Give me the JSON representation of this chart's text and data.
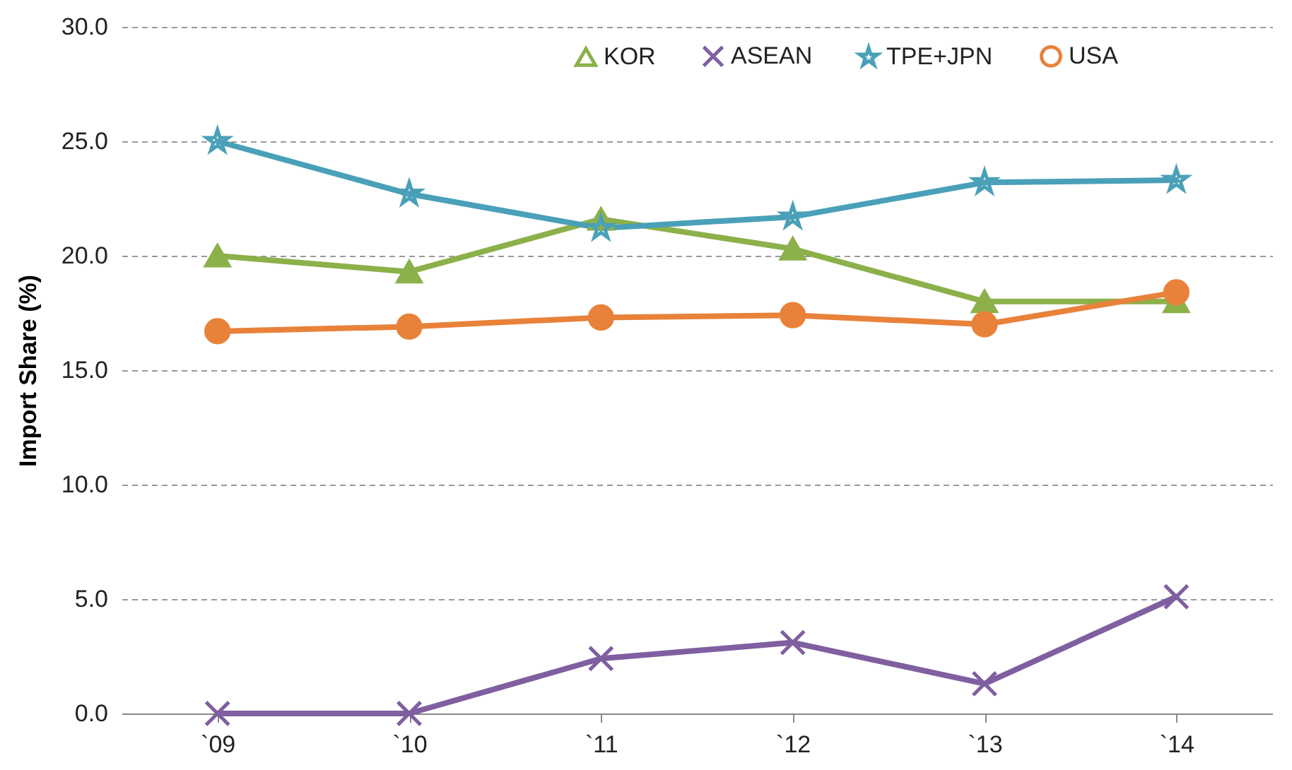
{
  "chart_data": {
    "type": "line",
    "ylabel": "Import Share (%)",
    "categories": [
      "`09",
      "`10",
      "`11",
      "`12",
      "`13",
      "`14"
    ],
    "series": [
      {
        "name": "KOR",
        "color": "#8cb04a",
        "marker": "triangle",
        "values": [
          20.0,
          19.3,
          21.6,
          20.3,
          18.0,
          18.0
        ]
      },
      {
        "name": "ASEAN",
        "color": "#7f5fa0",
        "marker": "cross",
        "values": [
          0.0,
          0.0,
          2.4,
          3.1,
          1.3,
          5.1
        ]
      },
      {
        "name": "TPE+JPN",
        "color": "#4aa0b8",
        "marker": "star",
        "values": [
          25.0,
          22.7,
          21.2,
          21.7,
          23.2,
          23.3
        ]
      },
      {
        "name": "USA",
        "color": "#e8823a",
        "marker": "circle",
        "values": [
          16.7,
          16.9,
          17.3,
          17.4,
          17.0,
          18.4
        ]
      }
    ],
    "ylim": [
      0,
      30
    ],
    "yticks": [
      {
        "value": 0,
        "label": "0.0"
      },
      {
        "value": 5,
        "label": "5.0"
      },
      {
        "value": 10,
        "label": "10.0"
      },
      {
        "value": 15,
        "label": "15.0"
      },
      {
        "value": 20,
        "label": "20.0"
      },
      {
        "value": 25,
        "label": "25.0"
      },
      {
        "value": 30,
        "label": "30.0"
      }
    ],
    "grid": "y",
    "legend": "top right",
    "line_style": "solid"
  }
}
